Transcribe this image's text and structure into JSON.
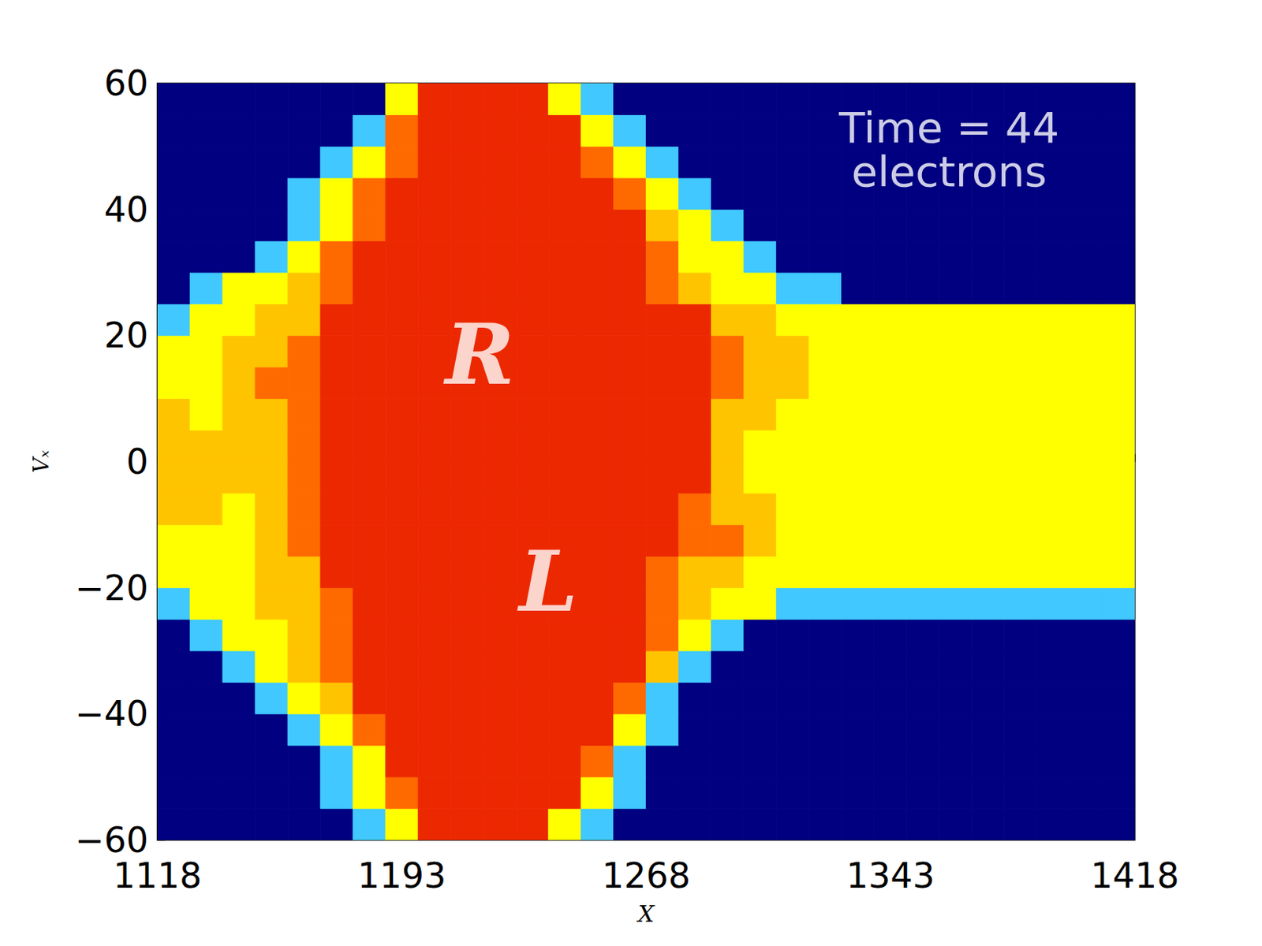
{
  "chart_data": {
    "type": "heatmap",
    "xlabel": "X",
    "ylabel": "Vₓ",
    "xlim": [
      1118,
      1418
    ],
    "ylim": [
      -60,
      60
    ],
    "xticks": [
      1118,
      1193,
      1268,
      1343,
      1418
    ],
    "yticks": [
      {
        "value": -60,
        "label": "−60"
      },
      {
        "value": -40,
        "label": "−40"
      },
      {
        "value": -20,
        "label": "−20"
      },
      0,
      20,
      40,
      60
    ],
    "grid": false,
    "x_edges": [
      1118,
      1128,
      1138,
      1148,
      1158,
      1168,
      1178,
      1188,
      1198,
      1208,
      1218,
      1228,
      1238,
      1248,
      1258,
      1268,
      1278,
      1288,
      1298,
      1308,
      1318,
      1328,
      1338,
      1348,
      1358,
      1368,
      1378,
      1388,
      1398,
      1408,
      1418
    ],
    "y_edges": [
      -60,
      -55,
      -50,
      -45,
      -40,
      -35,
      -30,
      -25,
      -20,
      -15,
      -10,
      -5,
      0,
      5,
      10,
      15,
      20,
      25,
      30,
      35,
      40,
      45,
      50,
      55,
      60
    ],
    "z": [
      [
        0,
        0,
        0,
        0,
        0,
        0,
        1,
        2,
        5,
        5,
        5,
        5,
        2,
        1,
        0,
        0,
        0,
        0,
        0,
        0,
        0,
        0,
        0,
        0,
        0,
        0,
        0,
        0,
        0,
        0
      ],
      [
        0,
        0,
        0,
        0,
        0,
        1,
        2,
        4,
        5,
        5,
        5,
        5,
        5,
        2,
        1,
        0,
        0,
        0,
        0,
        0,
        0,
        0,
        0,
        0,
        0,
        0,
        0,
        0,
        0,
        0
      ],
      [
        0,
        0,
        0,
        0,
        0,
        1,
        2,
        5,
        5,
        5,
        5,
        5,
        5,
        4,
        1,
        0,
        0,
        0,
        0,
        0,
        0,
        0,
        0,
        0,
        0,
        0,
        0,
        0,
        0,
        0
      ],
      [
        0,
        0,
        0,
        0,
        1,
        2,
        4,
        5,
        5,
        5,
        5,
        5,
        5,
        5,
        2,
        1,
        0,
        0,
        0,
        0,
        0,
        0,
        0,
        0,
        0,
        0,
        0,
        0,
        0,
        0
      ],
      [
        0,
        0,
        0,
        1,
        2,
        3,
        5,
        5,
        5,
        5,
        5,
        5,
        5,
        5,
        4,
        1,
        0,
        0,
        0,
        0,
        0,
        0,
        0,
        0,
        0,
        0,
        0,
        0,
        0,
        0
      ],
      [
        0,
        0,
        1,
        2,
        3,
        4,
        5,
        5,
        5,
        5,
        5,
        5,
        5,
        5,
        5,
        3,
        1,
        0,
        0,
        0,
        0,
        0,
        0,
        0,
        0,
        0,
        0,
        0,
        0,
        0
      ],
      [
        0,
        1,
        2,
        2,
        3,
        4,
        5,
        5,
        5,
        5,
        5,
        5,
        5,
        5,
        5,
        4,
        2,
        1,
        0,
        0,
        0,
        0,
        0,
        0,
        0,
        0,
        0,
        0,
        0,
        0
      ],
      [
        1,
        2,
        2,
        3,
        3,
        4,
        5,
        5,
        5,
        5,
        5,
        5,
        5,
        5,
        5,
        4,
        3,
        2,
        2,
        1,
        1,
        1,
        1,
        1,
        1,
        1,
        1,
        1,
        1,
        1
      ],
      [
        2,
        2,
        2,
        3,
        3,
        5,
        5,
        5,
        5,
        5,
        5,
        5,
        5,
        5,
        5,
        4,
        3,
        3,
        2,
        2,
        2,
        2,
        2,
        2,
        2,
        2,
        2,
        2,
        2,
        2
      ],
      [
        2,
        2,
        2,
        3,
        4,
        5,
        5,
        5,
        5,
        5,
        5,
        5,
        5,
        5,
        5,
        5,
        4,
        4,
        3,
        2,
        2,
        2,
        2,
        2,
        2,
        2,
        2,
        2,
        2,
        2
      ],
      [
        3,
        3,
        2,
        3,
        4,
        5,
        5,
        5,
        5,
        5,
        5,
        5,
        5,
        5,
        5,
        5,
        4,
        3,
        3,
        2,
        2,
        2,
        2,
        2,
        2,
        2,
        2,
        2,
        2,
        2
      ],
      [
        3,
        3,
        3,
        3,
        4,
        5,
        5,
        5,
        5,
        5,
        5,
        5,
        5,
        5,
        5,
        5,
        5,
        3,
        2,
        2,
        2,
        2,
        2,
        2,
        2,
        2,
        2,
        2,
        2,
        2
      ],
      [
        3,
        3,
        3,
        3,
        4,
        5,
        5,
        5,
        5,
        5,
        5,
        5,
        5,
        5,
        5,
        5,
        5,
        3,
        2,
        2,
        2,
        2,
        2,
        2,
        2,
        2,
        2,
        2,
        2,
        2
      ],
      [
        3,
        2,
        3,
        3,
        4,
        5,
        5,
        5,
        5,
        5,
        5,
        5,
        5,
        5,
        5,
        5,
        5,
        3,
        3,
        2,
        2,
        2,
        2,
        2,
        2,
        2,
        2,
        2,
        2,
        2
      ],
      [
        2,
        2,
        3,
        4,
        4,
        5,
        5,
        5,
        5,
        5,
        5,
        5,
        5,
        5,
        5,
        5,
        5,
        4,
        3,
        3,
        2,
        2,
        2,
        2,
        2,
        2,
        2,
        2,
        2,
        2
      ],
      [
        2,
        2,
        3,
        3,
        4,
        5,
        5,
        5,
        5,
        5,
        5,
        5,
        5,
        5,
        5,
        5,
        5,
        4,
        3,
        3,
        2,
        2,
        2,
        2,
        2,
        2,
        2,
        2,
        2,
        2
      ],
      [
        1,
        2,
        2,
        3,
        3,
        5,
        5,
        5,
        5,
        5,
        5,
        5,
        5,
        5,
        5,
        5,
        5,
        3,
        3,
        2,
        2,
        2,
        2,
        2,
        2,
        2,
        2,
        2,
        2,
        2
      ],
      [
        0,
        1,
        2,
        2,
        3,
        4,
        5,
        5,
        5,
        5,
        5,
        5,
        5,
        5,
        5,
        4,
        3,
        2,
        2,
        1,
        1,
        0,
        0,
        0,
        0,
        0,
        0,
        0,
        0,
        0
      ],
      [
        0,
        0,
        0,
        1,
        2,
        4,
        5,
        5,
        5,
        5,
        5,
        5,
        5,
        5,
        5,
        4,
        2,
        2,
        1,
        0,
        0,
        0,
        0,
        0,
        0,
        0,
        0,
        0,
        0,
        0
      ],
      [
        0,
        0,
        0,
        0,
        1,
        2,
        4,
        5,
        5,
        5,
        5,
        5,
        5,
        5,
        5,
        3,
        2,
        1,
        0,
        0,
        0,
        0,
        0,
        0,
        0,
        0,
        0,
        0,
        0,
        0
      ],
      [
        0,
        0,
        0,
        0,
        1,
        2,
        4,
        5,
        5,
        5,
        5,
        5,
        5,
        5,
        4,
        2,
        1,
        0,
        0,
        0,
        0,
        0,
        0,
        0,
        0,
        0,
        0,
        0,
        0,
        0
      ],
      [
        0,
        0,
        0,
        0,
        0,
        1,
        2,
        4,
        5,
        5,
        5,
        5,
        5,
        4,
        2,
        1,
        0,
        0,
        0,
        0,
        0,
        0,
        0,
        0,
        0,
        0,
        0,
        0,
        0,
        0
      ],
      [
        0,
        0,
        0,
        0,
        0,
        0,
        1,
        4,
        5,
        5,
        5,
        5,
        5,
        2,
        1,
        0,
        0,
        0,
        0,
        0,
        0,
        0,
        0,
        0,
        0,
        0,
        0,
        0,
        0,
        0
      ],
      [
        0,
        0,
        0,
        0,
        0,
        0,
        0,
        2,
        5,
        5,
        5,
        5,
        2,
        1,
        0,
        0,
        0,
        0,
        0,
        0,
        0,
        0,
        0,
        0,
        0,
        0,
        0,
        0,
        0,
        0
      ]
    ],
    "region_labels": [
      {
        "text": "R",
        "x": 1217,
        "y": 17
      },
      {
        "text": "L",
        "x": 1238,
        "y": -19
      }
    ],
    "annotations": [
      {
        "text": "Time = 44",
        "x": 1361,
        "y": 53
      },
      {
        "text": "electrons",
        "x": 1361,
        "y": 46
      }
    ]
  }
}
